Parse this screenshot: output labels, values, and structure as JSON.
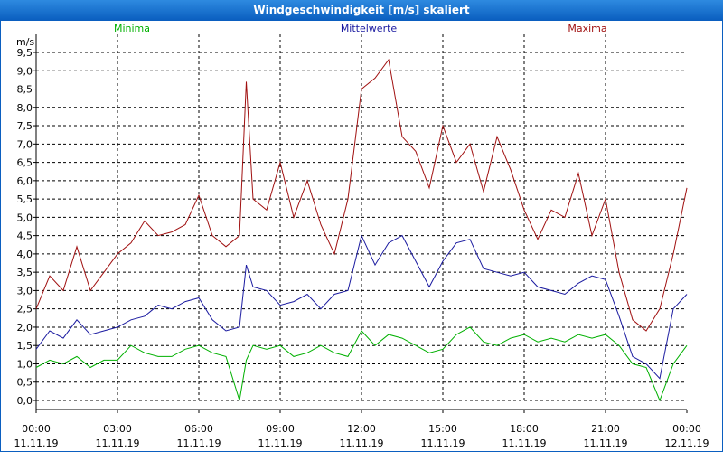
{
  "chart_data": {
    "type": "line",
    "title": "Windgeschwindigkeit [m/s] skaliert",
    "ylabel": "m/s",
    "ylim": [
      0,
      9.5
    ],
    "yticks": [
      "0,0",
      "0,5",
      "1,0",
      "1,5",
      "2,0",
      "2,5",
      "3,0",
      "3,5",
      "4,0",
      "4,5",
      "5,0",
      "5,5",
      "6,0",
      "6,5",
      "7,0",
      "7,5",
      "8,0",
      "8,5",
      "9,0",
      "9,5"
    ],
    "xticks": [
      {
        "time": "00:00",
        "date": "11.11.19"
      },
      {
        "time": "03:00",
        "date": "11.11.19"
      },
      {
        "time": "06:00",
        "date": "11.11.19"
      },
      {
        "time": "09:00",
        "date": "11.11.19"
      },
      {
        "time": "12:00",
        "date": "11.11.19"
      },
      {
        "time": "15:00",
        "date": "11.11.19"
      },
      {
        "time": "18:00",
        "date": "11.11.19"
      },
      {
        "time": "21:00",
        "date": "11.11.19"
      },
      {
        "time": "00:00",
        "date": "12.11.19"
      }
    ],
    "x_hours": [
      0,
      0.5,
      1,
      1.5,
      2,
      2.5,
      3,
      3.5,
      4,
      4.5,
      5,
      5.5,
      6,
      6.5,
      7,
      7.5,
      7.75,
      8,
      8.5,
      9,
      9.5,
      10,
      10.5,
      11,
      11.5,
      12,
      12.5,
      13,
      13.5,
      14,
      14.5,
      15,
      15.5,
      16,
      16.5,
      17,
      17.5,
      18,
      18.5,
      19,
      19.5,
      20,
      20.5,
      21,
      21.5,
      22,
      22.5,
      23,
      23.5,
      24
    ],
    "series": [
      {
        "name": "Minima",
        "color": "#00b000",
        "values": [
          0.9,
          1.1,
          1.0,
          1.2,
          0.9,
          1.1,
          1.1,
          1.5,
          1.3,
          1.2,
          1.2,
          1.4,
          1.5,
          1.3,
          1.2,
          0.0,
          1.1,
          1.5,
          1.4,
          1.5,
          1.2,
          1.3,
          1.5,
          1.3,
          1.2,
          1.9,
          1.5,
          1.8,
          1.7,
          1.5,
          1.3,
          1.4,
          1.8,
          2.0,
          1.6,
          1.5,
          1.7,
          1.8,
          1.6,
          1.7,
          1.6,
          1.8,
          1.7,
          1.8,
          1.5,
          1.0,
          0.9,
          0.0,
          1.0,
          1.5
        ]
      },
      {
        "name": "Mittelwerte",
        "color": "#1a1aa0",
        "values": [
          1.4,
          1.9,
          1.7,
          2.2,
          1.8,
          1.9,
          2.0,
          2.2,
          2.3,
          2.6,
          2.5,
          2.7,
          2.8,
          2.2,
          1.9,
          2.0,
          3.7,
          3.1,
          3.0,
          2.6,
          2.7,
          2.9,
          2.5,
          2.9,
          3.0,
          4.5,
          3.7,
          4.3,
          4.5,
          3.8,
          3.1,
          3.8,
          4.3,
          4.4,
          3.6,
          3.5,
          3.4,
          3.5,
          3.1,
          3.0,
          2.9,
          3.2,
          3.4,
          3.3,
          2.3,
          1.2,
          1.0,
          0.6,
          2.5,
          2.9
        ]
      },
      {
        "name": "Maxima",
        "color": "#a01010",
        "values": [
          2.5,
          3.4,
          3.0,
          4.2,
          3.0,
          3.5,
          4.0,
          4.3,
          4.9,
          4.5,
          4.6,
          4.8,
          5.6,
          4.5,
          4.2,
          4.5,
          8.7,
          5.5,
          5.2,
          6.5,
          5.0,
          6.0,
          4.8,
          4.0,
          5.5,
          8.5,
          8.8,
          9.3,
          7.2,
          6.8,
          5.8,
          7.5,
          6.5,
          7.0,
          5.7,
          7.2,
          6.3,
          5.2,
          4.4,
          5.2,
          5.0,
          6.2,
          4.5,
          5.5,
          3.5,
          2.2,
          1.9,
          2.5,
          4.0,
          5.8
        ]
      }
    ]
  }
}
